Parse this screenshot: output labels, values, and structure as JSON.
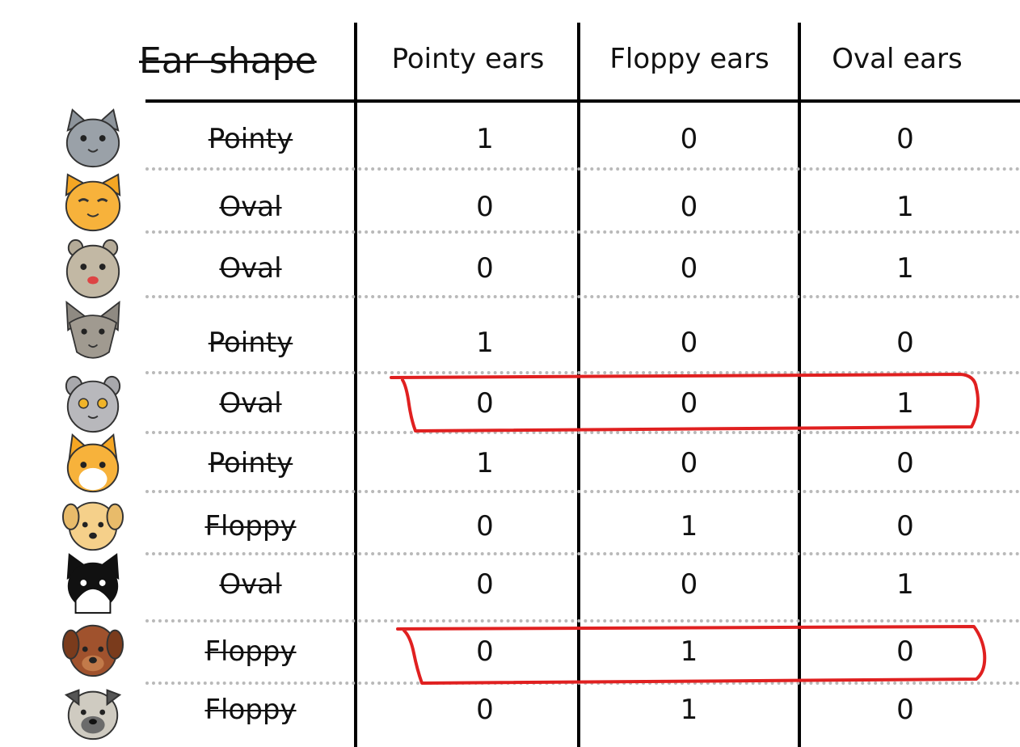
{
  "table": {
    "headers": {
      "ear_shape": "Ear shape",
      "pointy": "Pointy ears",
      "floppy": "Floppy ears",
      "oval": "Oval ears"
    },
    "rows": [
      {
        "animal": "cat-gray-icon",
        "shape": "Pointy",
        "pointy": "1",
        "floppy": "0",
        "oval": "0"
      },
      {
        "animal": "cat-orange-icon",
        "shape": "Oval",
        "pointy": "0",
        "floppy": "0",
        "oval": "1"
      },
      {
        "animal": "cat-tan-round-icon",
        "shape": "Oval",
        "pointy": "0",
        "floppy": "0",
        "oval": "1"
      },
      {
        "animal": "cat-gray-pointy-icon",
        "shape": "Pointy",
        "pointy": "1",
        "floppy": "0",
        "oval": "0"
      },
      {
        "animal": "cat-gray-round-icon",
        "shape": "Oval",
        "pointy": "0",
        "floppy": "0",
        "oval": "1"
      },
      {
        "animal": "cat-orange-white-icon",
        "shape": "Pointy",
        "pointy": "1",
        "floppy": "0",
        "oval": "0"
      },
      {
        "animal": "dog-tan-icon",
        "shape": "Floppy",
        "pointy": "0",
        "floppy": "1",
        "oval": "0"
      },
      {
        "animal": "cat-tuxedo-icon",
        "shape": "Oval",
        "pointy": "0",
        "floppy": "0",
        "oval": "1"
      },
      {
        "animal": "dog-brown-icon",
        "shape": "Floppy",
        "pointy": "0",
        "floppy": "1",
        "oval": "0"
      },
      {
        "animal": "dog-pug-icon",
        "shape": "Floppy",
        "pointy": "0",
        "floppy": "1",
        "oval": "0"
      }
    ],
    "highlighted_rows": [
      4,
      8
    ],
    "highlight_color": "#e02020"
  }
}
